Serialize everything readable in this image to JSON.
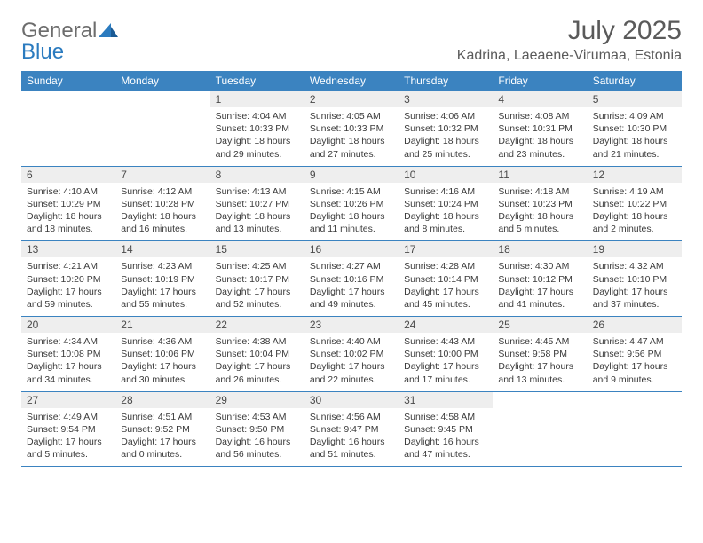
{
  "logo": {
    "text1": "General",
    "text2": "Blue"
  },
  "title": "July 2025",
  "location": "Kadrina, Laeaene-Virumaa, Estonia",
  "colors": {
    "header_bg": "#3b83c0",
    "header_text": "#ffffff",
    "daynum_bg": "#eeeeee",
    "border": "#3b83c0",
    "logo_gray": "#6d6d6d",
    "logo_blue": "#2b7bbf"
  },
  "weekdays": [
    "Sunday",
    "Monday",
    "Tuesday",
    "Wednesday",
    "Thursday",
    "Friday",
    "Saturday"
  ],
  "weeks": [
    [
      null,
      null,
      {
        "n": "1",
        "sr": "4:04 AM",
        "ss": "10:33 PM",
        "dl": "18 hours and 29 minutes."
      },
      {
        "n": "2",
        "sr": "4:05 AM",
        "ss": "10:33 PM",
        "dl": "18 hours and 27 minutes."
      },
      {
        "n": "3",
        "sr": "4:06 AM",
        "ss": "10:32 PM",
        "dl": "18 hours and 25 minutes."
      },
      {
        "n": "4",
        "sr": "4:08 AM",
        "ss": "10:31 PM",
        "dl": "18 hours and 23 minutes."
      },
      {
        "n": "5",
        "sr": "4:09 AM",
        "ss": "10:30 PM",
        "dl": "18 hours and 21 minutes."
      }
    ],
    [
      {
        "n": "6",
        "sr": "4:10 AM",
        "ss": "10:29 PM",
        "dl": "18 hours and 18 minutes."
      },
      {
        "n": "7",
        "sr": "4:12 AM",
        "ss": "10:28 PM",
        "dl": "18 hours and 16 minutes."
      },
      {
        "n": "8",
        "sr": "4:13 AM",
        "ss": "10:27 PM",
        "dl": "18 hours and 13 minutes."
      },
      {
        "n": "9",
        "sr": "4:15 AM",
        "ss": "10:26 PM",
        "dl": "18 hours and 11 minutes."
      },
      {
        "n": "10",
        "sr": "4:16 AM",
        "ss": "10:24 PM",
        "dl": "18 hours and 8 minutes."
      },
      {
        "n": "11",
        "sr": "4:18 AM",
        "ss": "10:23 PM",
        "dl": "18 hours and 5 minutes."
      },
      {
        "n": "12",
        "sr": "4:19 AM",
        "ss": "10:22 PM",
        "dl": "18 hours and 2 minutes."
      }
    ],
    [
      {
        "n": "13",
        "sr": "4:21 AM",
        "ss": "10:20 PM",
        "dl": "17 hours and 59 minutes."
      },
      {
        "n": "14",
        "sr": "4:23 AM",
        "ss": "10:19 PM",
        "dl": "17 hours and 55 minutes."
      },
      {
        "n": "15",
        "sr": "4:25 AM",
        "ss": "10:17 PM",
        "dl": "17 hours and 52 minutes."
      },
      {
        "n": "16",
        "sr": "4:27 AM",
        "ss": "10:16 PM",
        "dl": "17 hours and 49 minutes."
      },
      {
        "n": "17",
        "sr": "4:28 AM",
        "ss": "10:14 PM",
        "dl": "17 hours and 45 minutes."
      },
      {
        "n": "18",
        "sr": "4:30 AM",
        "ss": "10:12 PM",
        "dl": "17 hours and 41 minutes."
      },
      {
        "n": "19",
        "sr": "4:32 AM",
        "ss": "10:10 PM",
        "dl": "17 hours and 37 minutes."
      }
    ],
    [
      {
        "n": "20",
        "sr": "4:34 AM",
        "ss": "10:08 PM",
        "dl": "17 hours and 34 minutes."
      },
      {
        "n": "21",
        "sr": "4:36 AM",
        "ss": "10:06 PM",
        "dl": "17 hours and 30 minutes."
      },
      {
        "n": "22",
        "sr": "4:38 AM",
        "ss": "10:04 PM",
        "dl": "17 hours and 26 minutes."
      },
      {
        "n": "23",
        "sr": "4:40 AM",
        "ss": "10:02 PM",
        "dl": "17 hours and 22 minutes."
      },
      {
        "n": "24",
        "sr": "4:43 AM",
        "ss": "10:00 PM",
        "dl": "17 hours and 17 minutes."
      },
      {
        "n": "25",
        "sr": "4:45 AM",
        "ss": "9:58 PM",
        "dl": "17 hours and 13 minutes."
      },
      {
        "n": "26",
        "sr": "4:47 AM",
        "ss": "9:56 PM",
        "dl": "17 hours and 9 minutes."
      }
    ],
    [
      {
        "n": "27",
        "sr": "4:49 AM",
        "ss": "9:54 PM",
        "dl": "17 hours and 5 minutes."
      },
      {
        "n": "28",
        "sr": "4:51 AM",
        "ss": "9:52 PM",
        "dl": "17 hours and 0 minutes."
      },
      {
        "n": "29",
        "sr": "4:53 AM",
        "ss": "9:50 PM",
        "dl": "16 hours and 56 minutes."
      },
      {
        "n": "30",
        "sr": "4:56 AM",
        "ss": "9:47 PM",
        "dl": "16 hours and 51 minutes."
      },
      {
        "n": "31",
        "sr": "4:58 AM",
        "ss": "9:45 PM",
        "dl": "16 hours and 47 minutes."
      },
      null,
      null
    ]
  ],
  "labels": {
    "sunrise": "Sunrise:",
    "sunset": "Sunset:",
    "daylight": "Daylight:"
  }
}
